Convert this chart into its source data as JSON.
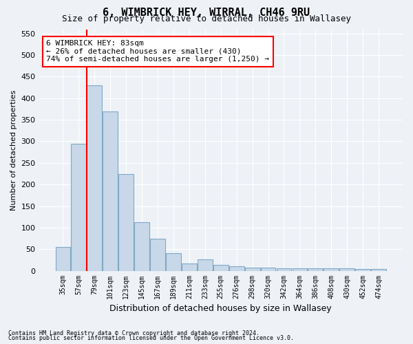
{
  "title": "6, WIMBRICK HEY, WIRRAL, CH46 9RU",
  "subtitle": "Size of property relative to detached houses in Wallasey",
  "xlabel": "Distribution of detached houses by size in Wallasey",
  "ylabel": "Number of detached properties",
  "categories": [
    "35sqm",
    "57sqm",
    "79sqm",
    "101sqm",
    "123sqm",
    "145sqm",
    "167sqm",
    "189sqm",
    "211sqm",
    "233sqm",
    "255sqm",
    "276sqm",
    "298sqm",
    "320sqm",
    "342sqm",
    "364sqm",
    "386sqm",
    "408sqm",
    "430sqm",
    "452sqm",
    "474sqm"
  ],
  "bar_heights": [
    55,
    295,
    430,
    370,
    225,
    113,
    75,
    40,
    17,
    27,
    14,
    10,
    8,
    8,
    5,
    5,
    5,
    5,
    5,
    4,
    4
  ],
  "bar_color": "#c8d8e8",
  "bar_edge_color": "#7fa8c8",
  "vline_color": "red",
  "annotation_text": "6 WIMBRICK HEY: 83sqm\n← 26% of detached houses are smaller (430)\n74% of semi-detached houses are larger (1,250) →",
  "annotation_box_color": "white",
  "annotation_box_edge": "red",
  "ylim": [
    0,
    560
  ],
  "yticks": [
    0,
    50,
    100,
    150,
    200,
    250,
    300,
    350,
    400,
    450,
    500,
    550
  ],
  "footer1": "Contains HM Land Registry data © Crown copyright and database right 2024.",
  "footer2": "Contains public sector information licensed under the Open Government Licence v3.0.",
  "bg_color": "#eef2f7",
  "plot_bg_color": "#eef2f7"
}
